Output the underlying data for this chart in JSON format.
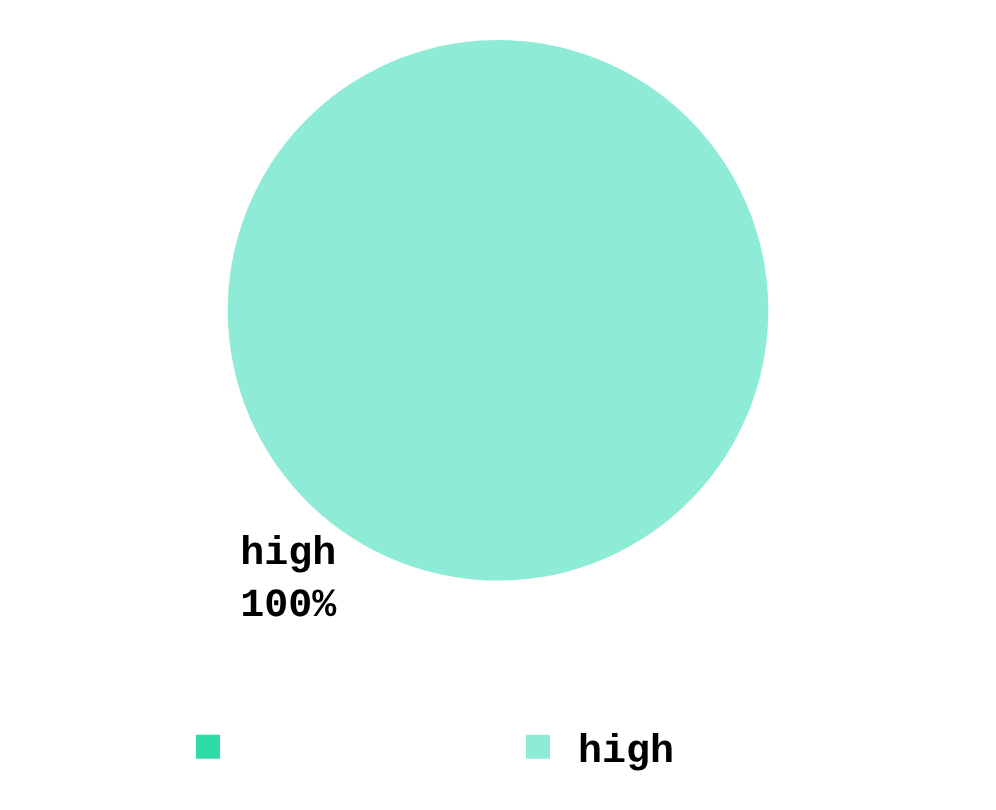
{
  "chart_data": {
    "type": "pie",
    "categories": [
      null,
      "high"
    ],
    "values": [
      0,
      100
    ],
    "colors": [
      "#2edaa8",
      "#8eecd6"
    ],
    "value_labels": [
      null,
      "100%"
    ],
    "legend": "bottom"
  }
}
